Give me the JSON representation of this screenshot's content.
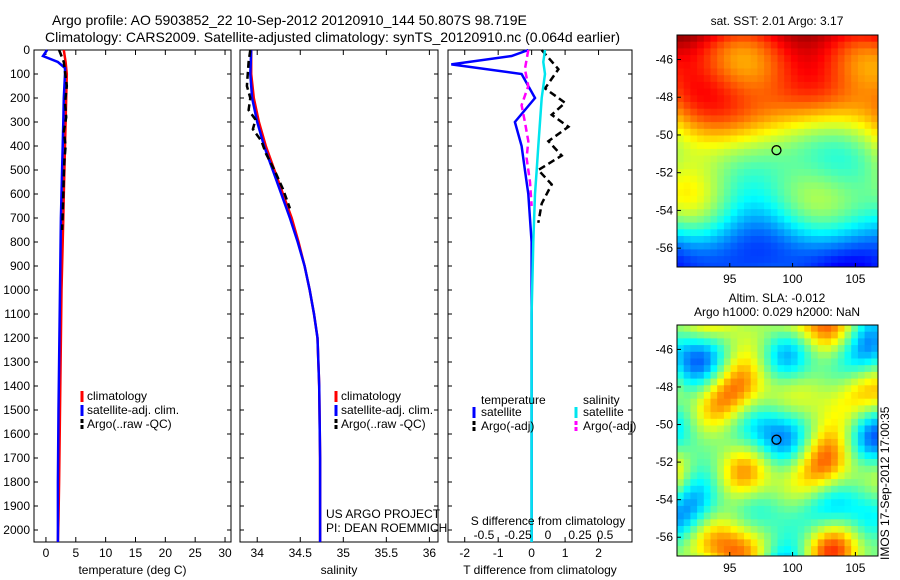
{
  "header": {
    "line1": "Argo profile: AO 5903852_22 10-Sep-2012 20120910_144 50.807S 98.719E",
    "line2": "Climatology: CARS2009. Satellite-adjusted climatology: synTS_20120910.nc (0.064d earlier)"
  },
  "credit": "IMOS 17-Sep-2012 17:00:35",
  "colors": {
    "climatology": "#ff0000",
    "satellite": "#0000ff",
    "argo": "#000000",
    "sal_satellite": "#00e5ee",
    "sal_argo": "#ff00ff"
  },
  "chart_data": [
    {
      "type": "line",
      "xlabel": "temperature (deg C)",
      "ylabel": "",
      "xlim": [
        -2,
        31
      ],
      "ylim": [
        0,
        2050
      ],
      "y_reversed": true,
      "xticks": [
        0,
        5,
        10,
        15,
        20,
        25,
        30
      ],
      "yticks": [
        0,
        100,
        200,
        300,
        400,
        500,
        600,
        700,
        800,
        900,
        1000,
        1100,
        1200,
        1300,
        1400,
        1500,
        1600,
        1700,
        1800,
        1900,
        2000
      ],
      "legend": [
        "climatology",
        "satellite-adj. clim.",
        "Argo(..raw -QC)"
      ],
      "series": [
        {
          "name": "climatology",
          "style": "solid",
          "color": "#ff0000",
          "x": [
            3.0,
            3.3,
            3.5,
            3.4,
            3.3,
            3.2,
            3.1,
            3.0,
            2.9,
            2.8,
            2.7,
            2.6,
            2.5,
            2.4,
            2.3,
            2.2,
            2.1,
            2.0
          ],
          "y": [
            0,
            50,
            100,
            200,
            300,
            400,
            500,
            600,
            700,
            800,
            900,
            1000,
            1200,
            1400,
            1600,
            1800,
            1950,
            2050
          ]
        },
        {
          "name": "satellite-adj. clim.",
          "style": "solid",
          "color": "#0000ff",
          "x": [
            0.2,
            -0.5,
            2.0,
            3.2,
            3.2,
            3.0,
            2.9,
            2.8,
            2.7,
            2.6,
            2.5,
            2.4,
            2.3,
            2.2,
            2.1,
            2.0,
            2.0
          ],
          "y": [
            0,
            25,
            50,
            75,
            100,
            200,
            300,
            400,
            500,
            600,
            700,
            900,
            1100,
            1300,
            1500,
            1800,
            2050
          ]
        },
        {
          "name": "Argo(..raw -QC)",
          "style": "dashed",
          "color": "#000000",
          "x": [
            2.2,
            3.0,
            3.5,
            3.2,
            3.4,
            3.0,
            3.3,
            3.1,
            3.0,
            2.9,
            2.8,
            2.7
          ],
          "y": [
            0,
            50,
            150,
            220,
            280,
            340,
            400,
            460,
            520,
            600,
            680,
            750
          ]
        }
      ]
    },
    {
      "type": "line",
      "xlabel": "salinity",
      "ylabel": "",
      "xlim": [
        33.8,
        36.1
      ],
      "ylim": [
        0,
        2050
      ],
      "y_reversed": true,
      "xticks": [
        34,
        34.5,
        35,
        35.5,
        36
      ],
      "legend": [
        "climatology",
        "satellite-adj. clim.",
        "Argo(..raw -QC)"
      ],
      "annotation": [
        "US ARGO PROJECT",
        "PI: DEAN ROEMMICH"
      ],
      "series": [
        {
          "name": "climatology",
          "style": "solid",
          "color": "#ff0000",
          "x": [
            33.93,
            33.93,
            33.96,
            34.02,
            34.1,
            34.2,
            34.3,
            34.4,
            34.48,
            34.55,
            34.61,
            34.66,
            34.7,
            34.72,
            34.73,
            34.73
          ],
          "y": [
            0,
            100,
            200,
            300,
            400,
            500,
            600,
            700,
            800,
            900,
            1000,
            1100,
            1200,
            1400,
            1700,
            2050
          ]
        },
        {
          "name": "satellite-adj. clim.",
          "style": "solid",
          "color": "#0000ff",
          "x": [
            33.93,
            33.92,
            33.94,
            34.0,
            34.08,
            34.18,
            34.28,
            34.38,
            34.47,
            34.55,
            34.61,
            34.66,
            34.7,
            34.72,
            34.73,
            34.73
          ],
          "y": [
            0,
            100,
            200,
            300,
            400,
            500,
            600,
            700,
            800,
            900,
            1000,
            1100,
            1200,
            1400,
            1700,
            2050
          ]
        },
        {
          "name": "Argo(..raw -QC)",
          "style": "dashed",
          "color": "#000000",
          "x": [
            33.92,
            33.9,
            33.88,
            33.92,
            33.9,
            33.98,
            33.95,
            34.05,
            34.1,
            34.2,
            34.3,
            34.38
          ],
          "y": [
            0,
            50,
            150,
            200,
            250,
            290,
            330,
            380,
            430,
            500,
            580,
            660
          ]
        }
      ]
    },
    {
      "type": "line",
      "xlabel": "T difference from climatology",
      "xlabel_top": "S difference from climatology",
      "xlim": [
        -2.5,
        3
      ],
      "ylim": [
        0,
        2050
      ],
      "y_reversed": true,
      "xticks": [
        -2,
        -1,
        0,
        1,
        2
      ],
      "xticks_s": [
        -0.5,
        -0.25,
        0,
        0.25,
        0.5
      ],
      "legend_groups": {
        "left_title": "temperature",
        "right_title": "salinity"
      },
      "legend": [
        "satellite",
        "Argo(-adj)",
        "satellite",
        "Argo(-adj)"
      ],
      "series": [
        {
          "name": "satellite",
          "group": "temperature",
          "style": "solid",
          "color": "#0000ff",
          "x": [
            -0.1,
            -0.6,
            -2.4,
            -0.3,
            0.1,
            -0.5,
            -0.3,
            -0.2,
            -0.1,
            0.0,
            0.0,
            0.0,
            0.0
          ],
          "y": [
            0,
            25,
            60,
            100,
            200,
            300,
            400,
            500,
            600,
            800,
            1000,
            1500,
            2050
          ]
        },
        {
          "name": "Argo(-adj)",
          "group": "temperature",
          "style": "dashed",
          "color": "#000000",
          "x": [
            0.3,
            0.8,
            0.4,
            1.0,
            0.6,
            1.1,
            0.5,
            0.9,
            0.2,
            0.6,
            0.3,
            0.2
          ],
          "y": [
            0,
            80,
            160,
            220,
            270,
            320,
            380,
            440,
            500,
            560,
            640,
            720
          ]
        },
        {
          "name": "satellite",
          "group": "salinity",
          "style": "solid",
          "color": "#00e5ee",
          "x": [
            0.4,
            0.35,
            0.4,
            0.3,
            0.25,
            0.2,
            0.15,
            0.1,
            0.05,
            0.0,
            0.0
          ],
          "y": [
            0,
            50,
            100,
            200,
            300,
            400,
            500,
            600,
            800,
            1100,
            2050
          ]
        },
        {
          "name": "Argo(-adj)",
          "group": "salinity",
          "style": "dashed",
          "color": "#ff00ff",
          "x": [
            -0.1,
            -0.2,
            -0.1,
            -0.3,
            -0.2,
            -0.1,
            -0.15,
            -0.05,
            0.0
          ],
          "y": [
            0,
            80,
            150,
            230,
            300,
            380,
            450,
            550,
            650
          ]
        }
      ]
    },
    {
      "type": "heatmap",
      "title": "sat. SST: 2.01 Argo: 3.17",
      "xticks": [
        95,
        100,
        105
      ],
      "yticks": [
        -46,
        -48,
        -50,
        -52,
        -54,
        -56
      ],
      "xlim": [
        90.8,
        106.8
      ],
      "ylim": [
        -57,
        -44.7
      ],
      "marker": {
        "lon": 98.719,
        "lat": -50.807
      }
    },
    {
      "type": "heatmap",
      "title_lines": [
        "Altim. SLA: -0.012",
        "Argo h1000: 0.029 h2000: NaN"
      ],
      "xticks": [
        95,
        100,
        105
      ],
      "yticks": [
        -46,
        -48,
        -50,
        -52,
        -54,
        -56
      ],
      "xlim": [
        90.8,
        106.8
      ],
      "ylim": [
        -57,
        -44.7
      ],
      "marker": {
        "lon": 98.719,
        "lat": -50.807
      }
    }
  ]
}
